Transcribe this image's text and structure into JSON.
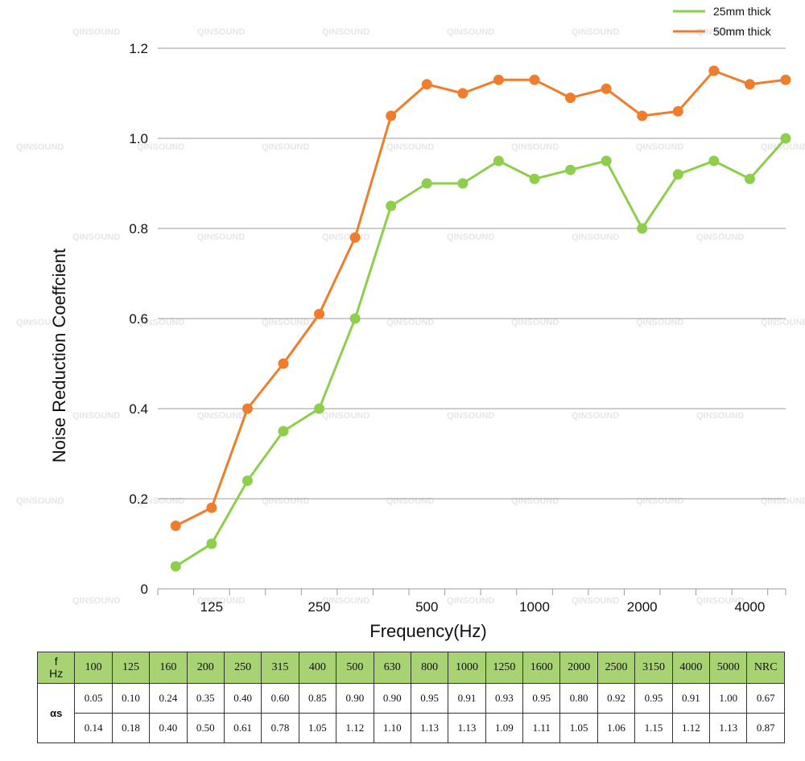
{
  "chart_data": {
    "type": "line",
    "xlabel": "Frequency(Hz)",
    "ylabel": "Noise Reduction Coeffcient",
    "ylim": [
      0,
      1.2
    ],
    "yticks": [
      "0",
      "0.2",
      "0.4",
      "0.6",
      "0.8",
      "1.0",
      "1.2"
    ],
    "x_tick_labels": [
      "125",
      "250",
      "500",
      "1000",
      "2000",
      "4000"
    ],
    "categories": [
      "100",
      "125",
      "160",
      "200",
      "250",
      "315",
      "400",
      "500",
      "630",
      "800",
      "1000",
      "1250",
      "1600",
      "2000",
      "2500",
      "3150",
      "4000",
      "5000"
    ],
    "series": [
      {
        "name": "25mm thick",
        "color": "#8dcf4d",
        "values": [
          0.05,
          0.1,
          0.24,
          0.35,
          0.4,
          0.6,
          0.85,
          0.9,
          0.9,
          0.95,
          0.91,
          0.93,
          0.95,
          0.8,
          0.92,
          0.95,
          0.91,
          1.0
        ]
      },
      {
        "name": "50mm thick",
        "color": "#ef7d2d",
        "values": [
          0.14,
          0.18,
          0.4,
          0.5,
          0.61,
          0.78,
          1.05,
          1.12,
          1.1,
          1.13,
          1.13,
          1.09,
          1.11,
          1.05,
          1.06,
          1.15,
          1.12,
          1.13
        ]
      }
    ],
    "legend": "top-right",
    "grid": true
  },
  "watermark": "QINSOUND",
  "table": {
    "header_label_top": "f",
    "header_label_bottom": "Hz",
    "frequencies": [
      "100",
      "125",
      "160",
      "200",
      "250",
      "315",
      "400",
      "500",
      "630",
      "800",
      "1000",
      "1250",
      "1600",
      "2000",
      "2500",
      "3150",
      "4000",
      "5000",
      "NRC"
    ],
    "row_label": "αs",
    "row_25mm": [
      "0.05",
      "0.10",
      "0.24",
      "0.35",
      "0.40",
      "0.60",
      "0.85",
      "0.90",
      "0.90",
      "0.95",
      "0.91",
      "0.93",
      "0.95",
      "0.80",
      "0.92",
      "0.95",
      "0.91",
      "1.00",
      "0.67"
    ],
    "row_50mm": [
      "0.14",
      "0.18",
      "0.40",
      "0.50",
      "0.61",
      "0.78",
      "1.05",
      "1.12",
      "1.10",
      "1.13",
      "1.13",
      "1.09",
      "1.11",
      "1.05",
      "1.06",
      "1.15",
      "1.12",
      "1.13",
      "0.87"
    ]
  },
  "colors": {
    "header_bg": "#a7d372",
    "grid": "#999999"
  }
}
